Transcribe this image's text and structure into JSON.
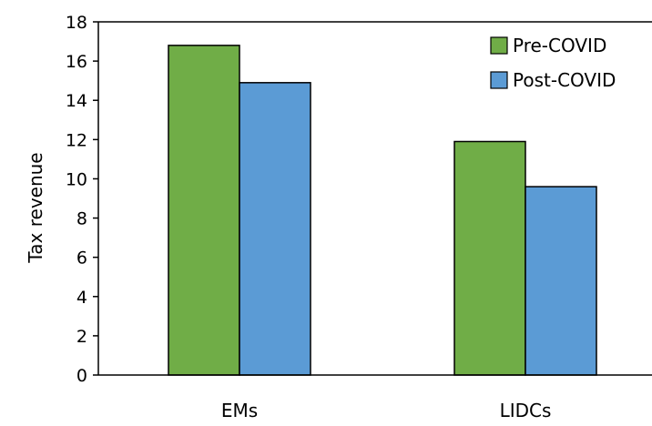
{
  "chart_data": {
    "type": "bar",
    "title": "",
    "xlabel": "",
    "ylabel": "Tax revenue",
    "categories": [
      "EMs",
      "LIDCs"
    ],
    "series": [
      {
        "name": "Pre-COVID",
        "color": "#70AD47",
        "values": [
          16.8,
          11.9
        ]
      },
      {
        "name": "Post-COVID",
        "color": "#5B9BD5",
        "values": [
          14.9,
          9.6
        ]
      }
    ],
    "ylim": [
      0,
      18
    ],
    "yticks": [
      0,
      2,
      4,
      6,
      8,
      10,
      12,
      14,
      16,
      18
    ],
    "grid": false,
    "legend_position": "top-right"
  }
}
